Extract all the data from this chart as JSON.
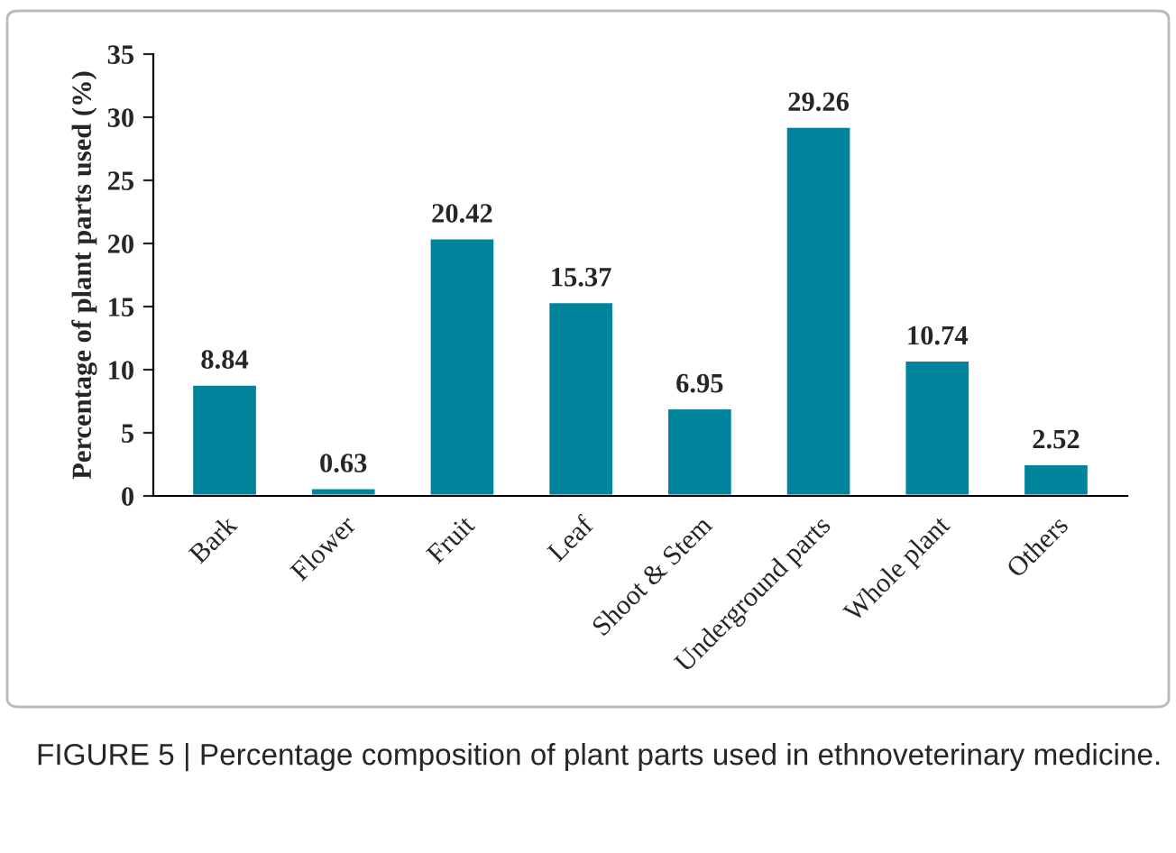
{
  "chart_data": {
    "type": "bar",
    "ylabel": "Percentage of plant parts used (%)",
    "categories": [
      "Bark",
      "Flower",
      "Fruit",
      "Leaf",
      "Shoot & Stem",
      "Underground parts",
      "Whole plant",
      "Others"
    ],
    "values": [
      8.84,
      0.63,
      20.42,
      15.37,
      6.95,
      29.26,
      10.74,
      2.52
    ],
    "color": "#00849c",
    "ylim": [
      0,
      35
    ],
    "yticks": [
      0,
      5,
      10,
      15,
      20,
      25,
      30,
      35
    ],
    "data_labels": true,
    "grid": false,
    "annotations": [
      "FIGURE 5 | Percentage composition of plant parts used in ethnoveterinary medicine."
    ]
  }
}
